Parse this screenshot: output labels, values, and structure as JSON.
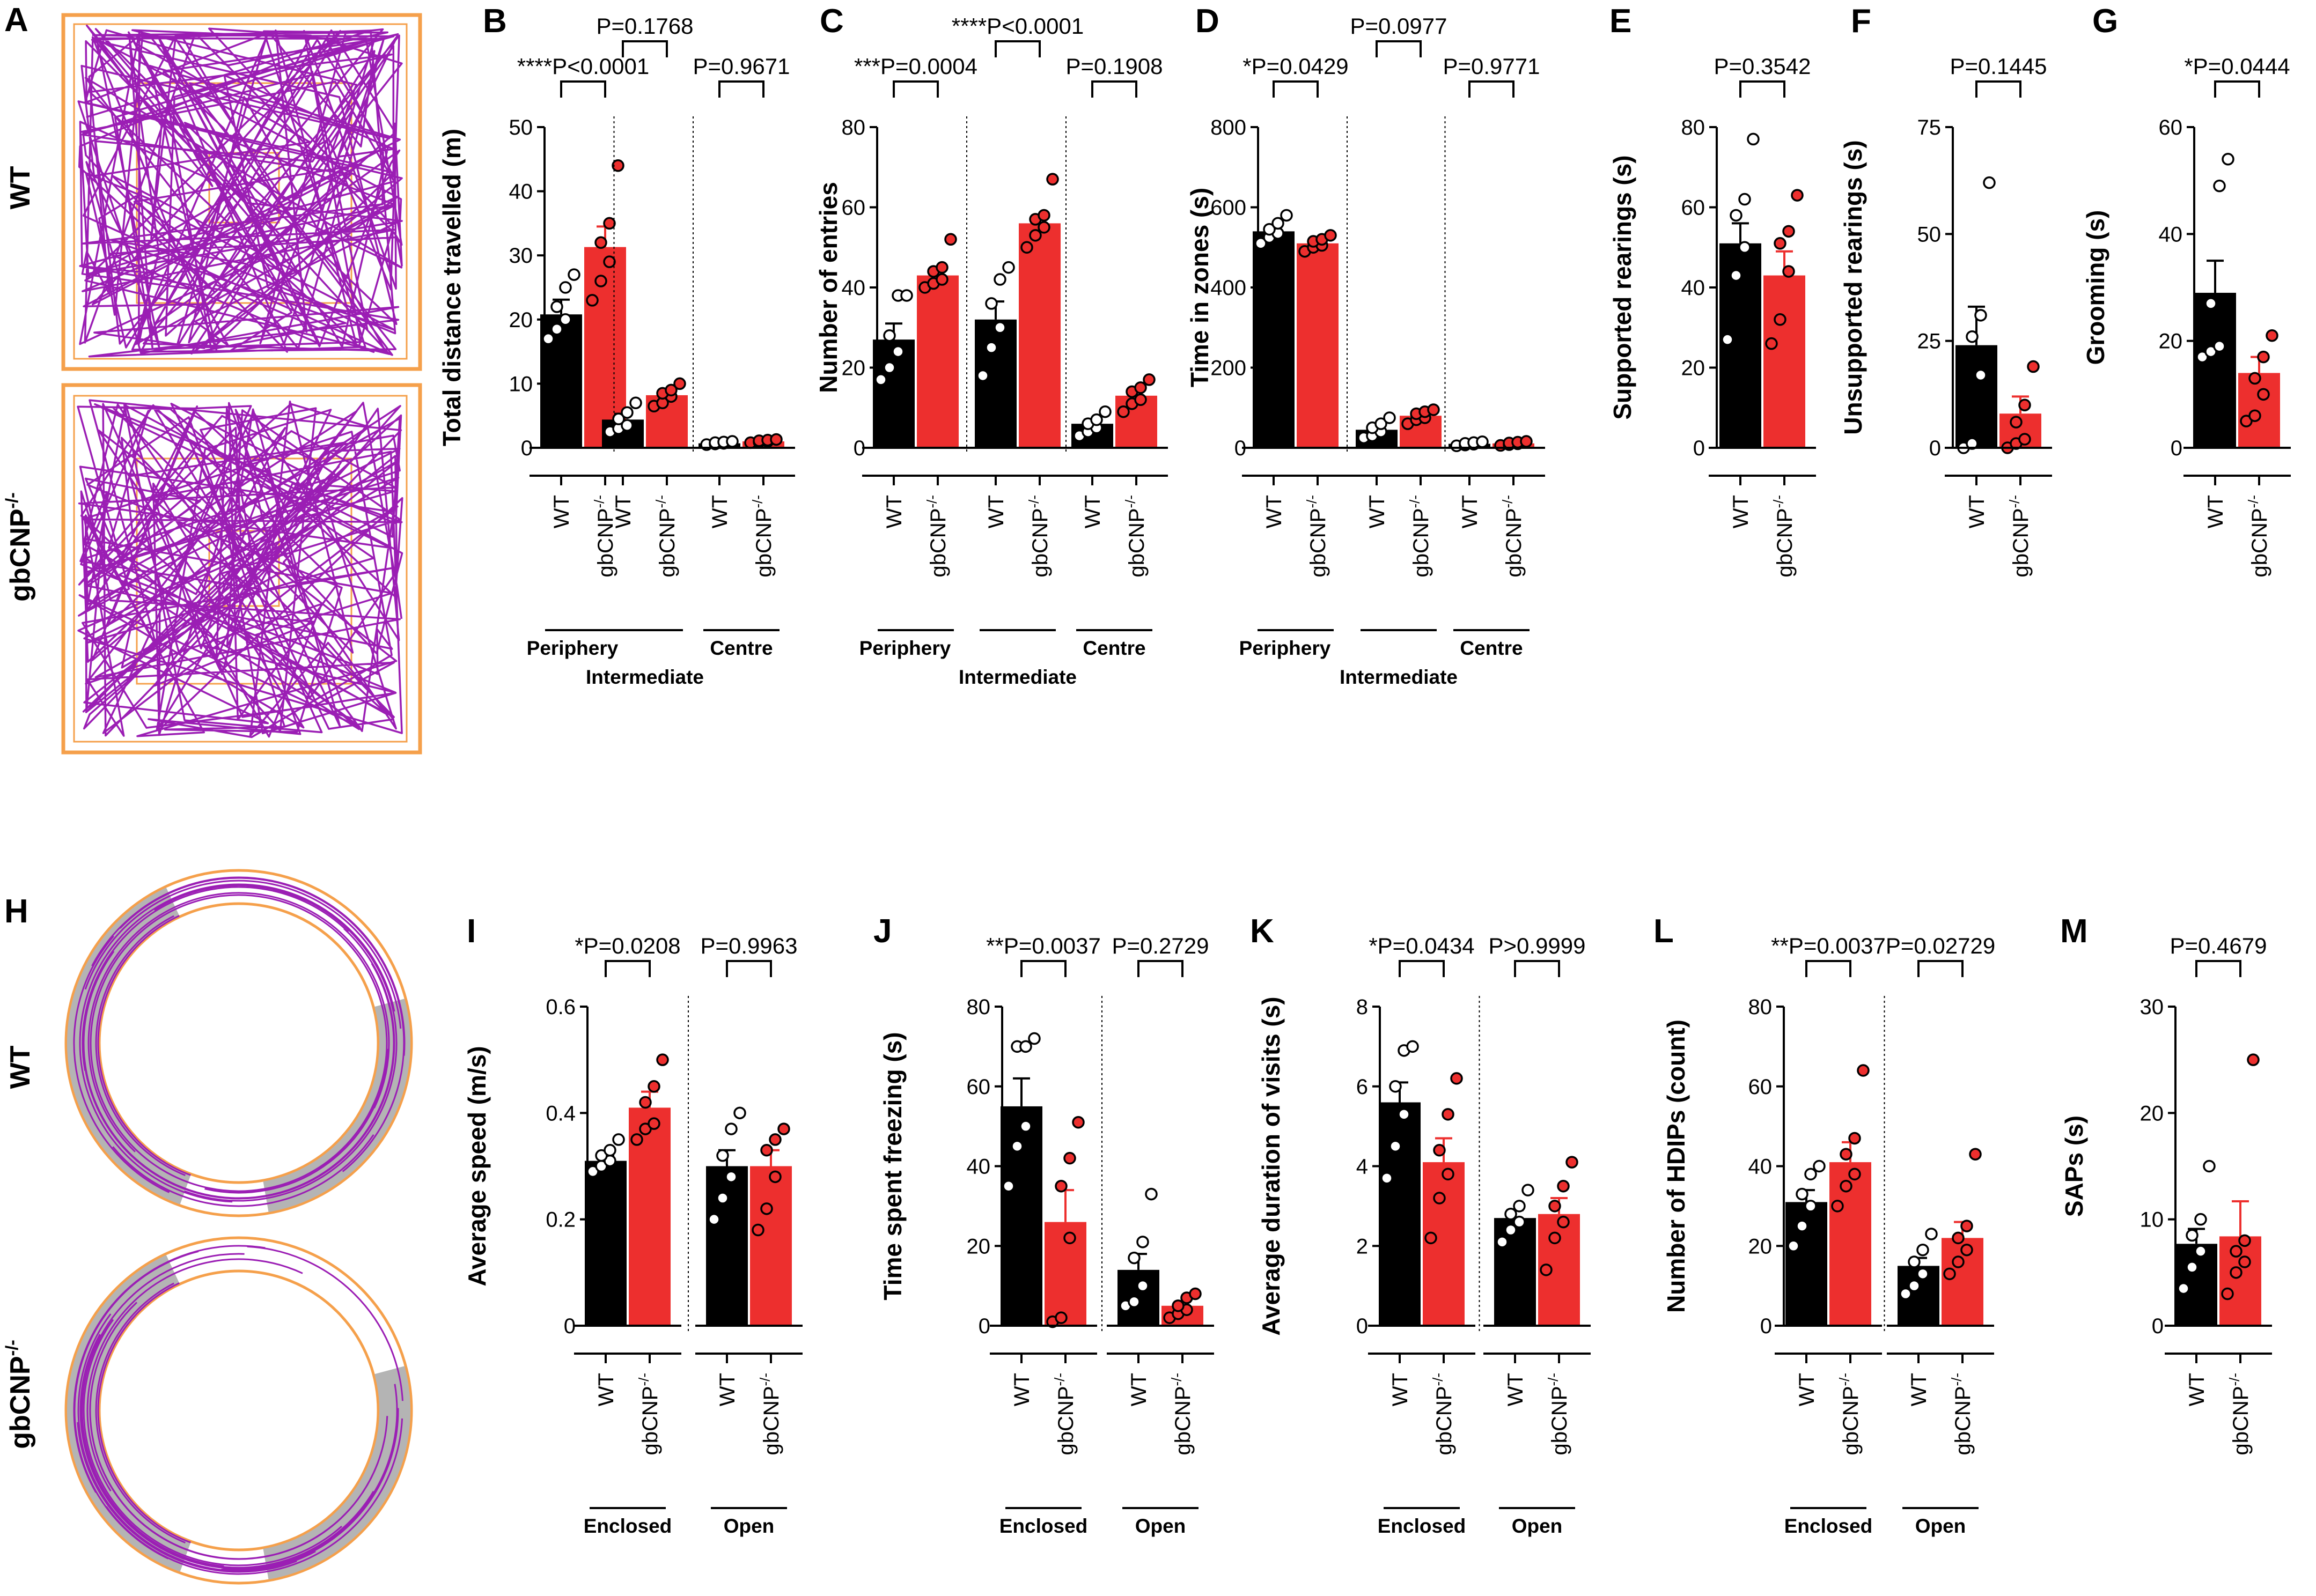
{
  "figure": {
    "colors": {
      "wt": "#000000",
      "ko": "#ED2F2E",
      "track": "#9B1EB4",
      "arena": "#F5A04B",
      "arm": "#B4B4B4"
    },
    "row_labels": {
      "wt": "WT",
      "ko_base": "gbCNP",
      "ko_sup": "-/-"
    },
    "legend": {
      "a": "A",
      "h": "H"
    }
  },
  "chart_data": [
    {
      "id": "B",
      "type": "bar",
      "ylabel": "Total distance travelled (m)",
      "ylim": [
        0,
        50
      ],
      "yticks": [
        0,
        10,
        20,
        30,
        40,
        50
      ],
      "group_labels": [
        "WT",
        "gbCNP",
        "-/-"
      ],
      "zones": [
        "Periphery",
        "Intermediate",
        "Centre"
      ],
      "groups": [
        {
          "zone": "Periphery",
          "bars": [
            {
              "group": "WT",
              "mean": 20.8,
              "sem": 2.3,
              "points": [
                17,
                18.5,
                20,
                22,
                25,
                27
              ]
            },
            {
              "group": "gbCNP-/-",
              "mean": 31.3,
              "sem": 3.2,
              "points": [
                23,
                26,
                29,
                32,
                35,
                44
              ]
            }
          ]
        },
        {
          "zone": "Intermediate",
          "bars": [
            {
              "group": "WT",
              "mean": 4.4,
              "sem": 0.9,
              "points": [
                2.5,
                3,
                3.5,
                4.5,
                5.5,
                7
              ]
            },
            {
              "group": "gbCNP-/-",
              "mean": 8.2,
              "sem": 0.8,
              "points": [
                6.5,
                7,
                8,
                8.5,
                9,
                10
              ]
            }
          ]
        },
        {
          "zone": "Centre",
          "bars": [
            {
              "group": "WT",
              "mean": 0.7,
              "sem": 0.1,
              "points": [
                0.5,
                0.6,
                0.7,
                0.8,
                0.9,
                1.0
              ]
            },
            {
              "group": "gbCNP-/-",
              "mean": 1.0,
              "sem": 0.1,
              "points": [
                0.8,
                0.9,
                1.0,
                1.1,
                1.2,
                1.3
              ]
            }
          ]
        }
      ],
      "comparisons": [
        "****P<0.0001",
        "P=0.1768",
        "P=0.9671"
      ]
    },
    {
      "id": "C",
      "type": "bar",
      "ylabel": "Number of entries",
      "ylim": [
        0,
        80
      ],
      "yticks": [
        0,
        20,
        40,
        60,
        80
      ],
      "group_labels": [
        "WT",
        "gbCNP",
        "-/-"
      ],
      "zones": [
        "Periphery",
        "Intermediate",
        "Centre"
      ],
      "groups": [
        {
          "zone": "Periphery",
          "bars": [
            {
              "group": "WT",
              "mean": 27,
              "sem": 4,
              "points": [
                17,
                20,
                24,
                28,
                38,
                38
              ]
            },
            {
              "group": "gbCNP-/-",
              "mean": 43,
              "sem": 1.5,
              "points": [
                40,
                41,
                42,
                44,
                45,
                52
              ]
            }
          ]
        },
        {
          "zone": "Intermediate",
          "bars": [
            {
              "group": "WT",
              "mean": 32,
              "sem": 4.5,
              "points": [
                18,
                25,
                30,
                36,
                42,
                45
              ]
            },
            {
              "group": "gbCNP-/-",
              "mean": 56,
              "sem": 2,
              "points": [
                50,
                53,
                55,
                57,
                58,
                67
              ]
            }
          ]
        },
        {
          "zone": "Centre",
          "bars": [
            {
              "group": "WT",
              "mean": 6,
              "sem": 1,
              "points": [
                3,
                4,
                5,
                6,
                7,
                9
              ]
            },
            {
              "group": "gbCNP-/-",
              "mean": 13,
              "sem": 1.2,
              "points": [
                9,
                11,
                12,
                14,
                15,
                17
              ]
            }
          ]
        }
      ],
      "comparisons": [
        "***P=0.0004",
        "****P<0.0001",
        "P=0.1908"
      ]
    },
    {
      "id": "D",
      "type": "bar",
      "ylabel": "Time in zones (s)",
      "ylim": [
        0,
        800
      ],
      "yticks": [
        0,
        200,
        400,
        600,
        800
      ],
      "group_labels": [
        "WT",
        "gbCNP",
        "-/-"
      ],
      "zones": [
        "Periphery",
        "Intermediate",
        "Centre"
      ],
      "groups": [
        {
          "zone": "Periphery",
          "bars": [
            {
              "group": "WT",
              "mean": 540,
              "sem": 12,
              "points": [
                510,
                525,
                535,
                545,
                560,
                580
              ]
            },
            {
              "group": "gbCNP-/-",
              "mean": 510,
              "sem": 8,
              "points": [
                490,
                500,
                505,
                515,
                520,
                530
              ]
            }
          ]
        },
        {
          "zone": "Intermediate",
          "bars": [
            {
              "group": "WT",
              "mean": 45,
              "sem": 9,
              "points": [
                25,
                30,
                40,
                50,
                60,
                75
              ]
            },
            {
              "group": "gbCNP-/-",
              "mean": 80,
              "sem": 6,
              "points": [
                60,
                70,
                75,
                85,
                90,
                95
              ]
            }
          ]
        },
        {
          "zone": "Centre",
          "bars": [
            {
              "group": "WT",
              "mean": 10,
              "sem": 2,
              "points": [
                5,
                7,
                9,
                11,
                13,
                15
              ]
            },
            {
              "group": "gbCNP-/-",
              "mean": 11,
              "sem": 2,
              "points": [
                6,
                8,
                10,
                12,
                14,
                16
              ]
            }
          ]
        }
      ],
      "comparisons": [
        "*P=0.0429",
        "P=0.0977",
        "P=0.9771"
      ]
    },
    {
      "id": "E",
      "type": "bar",
      "ylabel": "Supported rearings (s)",
      "ylim": [
        0,
        80
      ],
      "yticks": [
        0,
        20,
        40,
        60,
        80
      ],
      "group_labels": [
        "WT",
        "gbCNP",
        "-/-"
      ],
      "zones": [],
      "groups": [
        {
          "zone": "",
          "bars": [
            {
              "group": "WT",
              "mean": 51,
              "sem": 5,
              "points": [
                27,
                43,
                50,
                58,
                62,
                77
              ]
            },
            {
              "group": "gbCNP-/-",
              "mean": 43,
              "sem": 6,
              "points": [
                26,
                32,
                44,
                51,
                54,
                63
              ]
            }
          ]
        }
      ],
      "comparisons": [
        "P=0.3542"
      ]
    },
    {
      "id": "F",
      "type": "bar",
      "ylabel": "Unsupported rearings (s)",
      "ylim": [
        0,
        75
      ],
      "yticks": [
        0,
        25,
        50,
        75
      ],
      "group_labels": [
        "WT",
        "gbCNP",
        "-/-"
      ],
      "zones": [],
      "groups": [
        {
          "zone": "",
          "bars": [
            {
              "group": "WT",
              "mean": 24,
              "sem": 9,
              "points": [
                0,
                1,
                17,
                26,
                31,
                62
              ]
            },
            {
              "group": "gbCNP-/-",
              "mean": 8,
              "sem": 4,
              "points": [
                0,
                1,
                2,
                6,
                10,
                19
              ]
            }
          ]
        }
      ],
      "comparisons": [
        "P=0.1445"
      ]
    },
    {
      "id": "G",
      "type": "bar",
      "ylabel": "Grooming (s)",
      "ylim": [
        0,
        60
      ],
      "yticks": [
        0,
        20,
        40,
        60
      ],
      "group_labels": [
        "WT",
        "gbCNP",
        "-/-"
      ],
      "zones": [],
      "groups": [
        {
          "zone": "",
          "bars": [
            {
              "group": "WT",
              "mean": 29,
              "sem": 6,
              "points": [
                17,
                18,
                19,
                27,
                49,
                54
              ]
            },
            {
              "group": "gbCNP-/-",
              "mean": 14,
              "sem": 3,
              "points": [
                5,
                6,
                10,
                13,
                17,
                21
              ]
            }
          ]
        }
      ],
      "comparisons": [
        "*P=0.0444"
      ]
    },
    {
      "id": "I",
      "type": "bar",
      "ylabel": "Average speed (m/s)",
      "ylim": [
        0,
        0.6
      ],
      "yticks": [
        0.0,
        0.2,
        0.4,
        0.6
      ],
      "group_labels": [
        "WT",
        "gbCNP",
        "-/-"
      ],
      "zones": [
        "Enclosed",
        "Open"
      ],
      "groups": [
        {
          "zone": "Enclosed",
          "bars": [
            {
              "group": "WT",
              "mean": 0.31,
              "sem": 0.01,
              "points": [
                0.29,
                0.3,
                0.31,
                0.32,
                0.33,
                0.35
              ]
            },
            {
              "group": "gbCNP-/-",
              "mean": 0.41,
              "sem": 0.03,
              "points": [
                0.35,
                0.37,
                0.38,
                0.42,
                0.45,
                0.5
              ]
            }
          ]
        },
        {
          "zone": "Open",
          "bars": [
            {
              "group": "WT",
              "mean": 0.3,
              "sem": 0.03,
              "points": [
                0.2,
                0.24,
                0.28,
                0.32,
                0.37,
                0.4
              ]
            },
            {
              "group": "gbCNP-/-",
              "mean": 0.3,
              "sem": 0.03,
              "points": [
                0.18,
                0.22,
                0.28,
                0.33,
                0.35,
                0.37
              ]
            }
          ]
        }
      ],
      "comparisons": [
        "*P=0.0208",
        "P=0.9963"
      ]
    },
    {
      "id": "J",
      "type": "bar",
      "ylabel": "Time spent freezing (s)",
      "ylim": [
        0,
        80
      ],
      "yticks": [
        0,
        20,
        40,
        60,
        80
      ],
      "group_labels": [
        "WT",
        "gbCNP",
        "-/-"
      ],
      "zones": [
        "Enclosed",
        "Open"
      ],
      "groups": [
        {
          "zone": "Enclosed",
          "bars": [
            {
              "group": "WT",
              "mean": 55,
              "sem": 7,
              "points": [
                35,
                45,
                50,
                70,
                70,
                72
              ]
            },
            {
              "group": "gbCNP-/-",
              "mean": 26,
              "sem": 8,
              "points": [
                1,
                2,
                22,
                35,
                42,
                51
              ]
            }
          ]
        },
        {
          "zone": "Open",
          "bars": [
            {
              "group": "WT",
              "mean": 14,
              "sem": 4,
              "points": [
                5,
                6,
                10,
                17,
                21,
                33
              ]
            },
            {
              "group": "gbCNP-/-",
              "mean": 5,
              "sem": 1,
              "points": [
                2,
                3,
                4,
                5,
                7,
                8
              ]
            }
          ]
        }
      ],
      "comparisons": [
        "**P=0.0037",
        "P=0.2729"
      ]
    },
    {
      "id": "K",
      "type": "bar",
      "ylabel": "Average duration of visits (s)",
      "ylim": [
        0,
        8
      ],
      "yticks": [
        0,
        2,
        4,
        6,
        8
      ],
      "group_labels": [
        "WT",
        "gbCNP",
        "-/-"
      ],
      "zones": [
        "Enclosed",
        "Open"
      ],
      "groups": [
        {
          "zone": "Enclosed",
          "bars": [
            {
              "group": "WT",
              "mean": 5.6,
              "sem": 0.5,
              "points": [
                3.7,
                4.5,
                5.3,
                6.0,
                6.9,
                7.0
              ]
            },
            {
              "group": "gbCNP-/-",
              "mean": 4.1,
              "sem": 0.6,
              "points": [
                2.2,
                3.2,
                3.8,
                4.4,
                5.3,
                6.2
              ]
            }
          ]
        },
        {
          "zone": "Open",
          "bars": [
            {
              "group": "WT",
              "mean": 2.7,
              "sem": 0.2,
              "points": [
                2.1,
                2.4,
                2.6,
                2.8,
                3.0,
                3.4
              ]
            },
            {
              "group": "gbCNP-/-",
              "mean": 2.8,
              "sem": 0.4,
              "points": [
                1.4,
                2.2,
                2.6,
                3.0,
                3.5,
                4.1
              ]
            }
          ]
        }
      ],
      "comparisons": [
        "*P=0.0434",
        "P>0.9999"
      ]
    },
    {
      "id": "L",
      "type": "bar",
      "ylabel": "Number of HDIPs (count)",
      "ylim": [
        0,
        80
      ],
      "yticks": [
        0,
        20,
        40,
        60,
        80
      ],
      "group_labels": [
        "WT",
        "gbCNP",
        "-/-"
      ],
      "zones": [
        "Enclosed",
        "Open"
      ],
      "groups": [
        {
          "zone": "Enclosed",
          "bars": [
            {
              "group": "WT",
              "mean": 31,
              "sem": 3,
              "points": [
                20,
                25,
                30,
                33,
                38,
                40
              ]
            },
            {
              "group": "gbCNP-/-",
              "mean": 41,
              "sem": 5,
              "points": [
                30,
                35,
                38,
                43,
                47,
                64
              ]
            }
          ]
        },
        {
          "zone": "Open",
          "bars": [
            {
              "group": "WT",
              "mean": 15,
              "sem": 2,
              "points": [
                8,
                10,
                13,
                16,
                19,
                23
              ]
            },
            {
              "group": "gbCNP-/-",
              "mean": 22,
              "sem": 4,
              "points": [
                13,
                16,
                19,
                22,
                25,
                43
              ]
            }
          ]
        }
      ],
      "comparisons": [
        "**P=0.0037",
        "P=0.02729"
      ]
    },
    {
      "id": "M",
      "type": "bar",
      "ylabel": "SAPs (s)",
      "ylim": [
        0,
        30
      ],
      "yticks": [
        0,
        10,
        20,
        30
      ],
      "group_labels": [
        "WT",
        "gbCNP",
        "-/-"
      ],
      "zones": [],
      "groups": [
        {
          "zone": "",
          "bars": [
            {
              "group": "WT",
              "mean": 7.7,
              "sem": 1.4,
              "points": [
                3.5,
                5.5,
                7,
                8.5,
                10,
                15
              ]
            },
            {
              "group": "gbCNP-/-",
              "mean": 8.4,
              "sem": 3.3,
              "points": [
                3,
                5,
                6,
                7,
                8,
                25
              ]
            }
          ]
        }
      ],
      "comparisons": [
        "P=0.4679"
      ]
    }
  ]
}
